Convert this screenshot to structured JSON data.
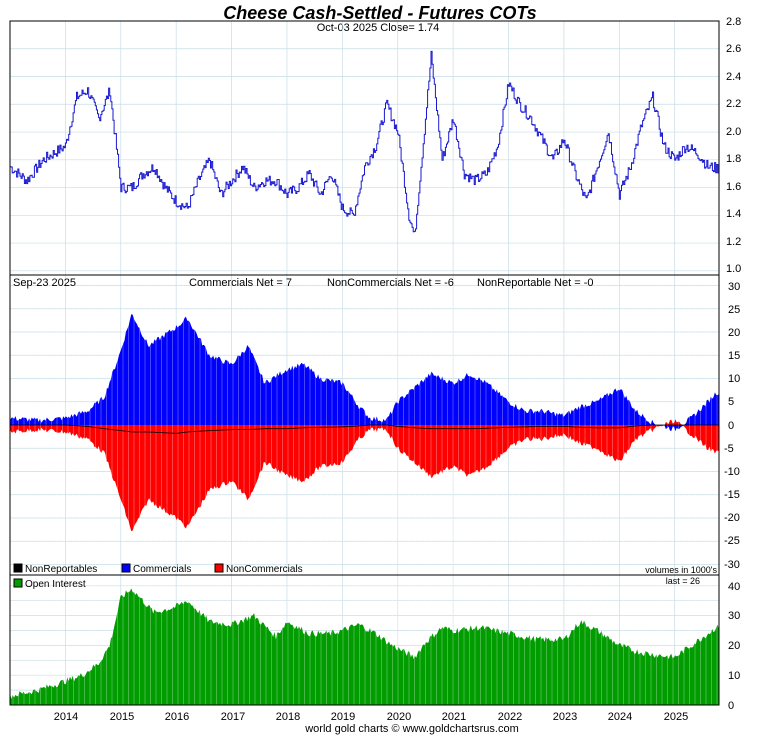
{
  "title": "Cheese Cash-Settled - Futures COTs",
  "subtitle": "Oct-03  2025   Close= 1.74",
  "footer": "world gold charts © www.goldchartsrus.com",
  "colors": {
    "title": "#1010d8",
    "price": "#1a1ad2",
    "commercials": "#0000ff",
    "noncommercials": "#ff0000",
    "nonreportables": "#000000",
    "open_interest": "#009c00",
    "grid": "#c7dde6"
  },
  "x_axis": {
    "labels": [
      "2014",
      "2015",
      "2016",
      "2017",
      "2018",
      "2019",
      "2020",
      "2021",
      "2022",
      "2023",
      "2024",
      "2025"
    ]
  },
  "price_panel": {
    "y_ticks": [
      "2.8",
      "2.6",
      "2.4",
      "2.2",
      "2.0",
      "1.8",
      "1.6",
      "1.4",
      "1.2",
      "1.0"
    ]
  },
  "cot_panel": {
    "date_label": "Sep-23  2025",
    "commercials_label": "Commercials Net = 7",
    "noncommercials_label": "NonCommercials Net = -6",
    "nonreportable_label": "NonReportable Net = -0",
    "y_ticks": [
      "30",
      "25",
      "20",
      "15",
      "10",
      "5",
      "0",
      "-5",
      "-10",
      "-15",
      "-20",
      "-25",
      "-30"
    ],
    "legend": [
      "NonReportables",
      "Commercials",
      "NonCommercials"
    ],
    "units_note": "volumes in 1000's"
  },
  "oi_panel": {
    "legend": "Open Interest",
    "last_label": "last = 26",
    "y_ticks": [
      "40",
      "30",
      "20",
      "10",
      "0"
    ]
  },
  "chart_data": [
    {
      "type": "line",
      "title": "Cheese Cash-Settled - Futures COTs",
      "series": [
        {
          "name": "Close",
          "x": [
            2013.0,
            2013.3,
            2013.6,
            2013.8,
            2014.0,
            2014.2,
            2014.4,
            2014.6,
            2014.8,
            2015.0,
            2015.2,
            2015.4,
            2015.6,
            2015.8,
            2016.0,
            2016.2,
            2016.4,
            2016.6,
            2016.8,
            2017.0,
            2017.2,
            2017.4,
            2017.6,
            2017.8,
            2018.0,
            2018.2,
            2018.4,
            2018.6,
            2018.8,
            2019.0,
            2019.2,
            2019.4,
            2019.6,
            2019.8,
            2020.0,
            2020.2,
            2020.3,
            2020.5,
            2020.6,
            2020.8,
            2021.0,
            2021.2,
            2021.4,
            2021.6,
            2021.8,
            2022.0,
            2022.2,
            2022.4,
            2022.6,
            2022.8,
            2023.0,
            2023.2,
            2023.4,
            2023.6,
            2023.8,
            2024.0,
            2024.2,
            2024.4,
            2024.6,
            2024.8,
            2025.0,
            2025.2,
            2025.4,
            2025.6,
            2025.75
          ],
          "values": [
            1.75,
            1.65,
            1.8,
            1.85,
            1.9,
            2.25,
            2.3,
            2.1,
            2.3,
            1.6,
            1.6,
            1.7,
            1.75,
            1.6,
            1.5,
            1.45,
            1.65,
            1.8,
            1.55,
            1.65,
            1.75,
            1.6,
            1.65,
            1.65,
            1.55,
            1.6,
            1.7,
            1.55,
            1.7,
            1.45,
            1.4,
            1.75,
            1.9,
            2.2,
            2.0,
            1.4,
            1.25,
            2.1,
            2.55,
            1.8,
            2.1,
            1.7,
            1.65,
            1.7,
            1.9,
            2.35,
            2.2,
            2.1,
            1.95,
            1.8,
            1.95,
            1.7,
            1.5,
            1.75,
            2.0,
            1.55,
            1.75,
            2.05,
            2.25,
            1.9,
            1.8,
            1.9,
            1.85,
            1.75,
            1.74
          ]
        }
      ],
      "ylim": [
        1.0,
        2.8
      ]
    },
    {
      "type": "area",
      "title": "COT Net Positions",
      "x": [
        2013.0,
        2013.5,
        2014.0,
        2014.4,
        2014.7,
        2015.0,
        2015.2,
        2015.5,
        2016.0,
        2016.2,
        2016.6,
        2017.0,
        2017.3,
        2017.6,
        2018.0,
        2018.3,
        2018.6,
        2019.0,
        2019.3,
        2019.5,
        2019.8,
        2020.0,
        2020.3,
        2020.6,
        2021.0,
        2021.3,
        2021.6,
        2022.0,
        2022.3,
        2022.6,
        2023.0,
        2023.3,
        2023.6,
        2024.0,
        2024.3,
        2024.6,
        2025.0,
        2025.3,
        2025.6,
        2025.75
      ],
      "series": [
        {
          "name": "Commercials",
          "values": [
            1.5,
            1,
            1.5,
            3,
            6,
            16,
            24,
            17,
            21,
            23,
            15,
            13,
            17,
            9,
            12,
            13,
            10,
            9,
            4,
            1.5,
            1,
            5,
            8,
            11,
            9,
            11,
            9,
            5,
            3,
            3,
            2,
            4,
            5,
            8,
            3,
            0.5,
            -1,
            1.5,
            5,
            7
          ]
        },
        {
          "name": "NonCommercials",
          "values": [
            -1.5,
            -1,
            -1.5,
            -3,
            -6,
            -16,
            -23,
            -16,
            -20,
            -22,
            -14,
            -12,
            -16,
            -8,
            -11,
            -12,
            -9,
            -8,
            -3,
            -1,
            -1,
            -5,
            -8,
            -11,
            -9,
            -11,
            -9,
            -5,
            -3,
            -3,
            -2,
            -4,
            -5,
            -8,
            -3,
            -1,
            1,
            -2,
            -5,
            -6
          ]
        },
        {
          "name": "NonReportables",
          "values": [
            0,
            0,
            0,
            -0.3,
            -0.8,
            -1.2,
            -1.5,
            -1.5,
            -1.8,
            -1.5,
            -1.2,
            -1,
            -1,
            -0.8,
            -0.8,
            -0.6,
            -0.5,
            -0.4,
            -0.2,
            0,
            0,
            -0.3,
            -0.6,
            -0.8,
            -0.8,
            -0.8,
            -0.7,
            -0.5,
            -0.4,
            -0.3,
            -0.3,
            -0.5,
            -0.6,
            -0.6,
            -0.2,
            0,
            0,
            0,
            0,
            0
          ]
        }
      ],
      "ylim": [
        -30,
        30
      ]
    },
    {
      "type": "bar",
      "title": "Open Interest",
      "x": [
        2013.0,
        2013.5,
        2014.0,
        2014.3,
        2014.6,
        2014.8,
        2015.0,
        2015.2,
        2015.6,
        2016.0,
        2016.2,
        2016.6,
        2017.0,
        2017.4,
        2017.8,
        2018.0,
        2018.4,
        2018.8,
        2019.0,
        2019.3,
        2019.6,
        2019.9,
        2020.0,
        2020.3,
        2020.5,
        2020.8,
        2021.0,
        2021.5,
        2022.0,
        2022.5,
        2023.0,
        2023.3,
        2023.6,
        2024.0,
        2024.3,
        2024.6,
        2025.0,
        2025.3,
        2025.6,
        2025.75
      ],
      "values": [
        3,
        5,
        8,
        10,
        14,
        20,
        36,
        39,
        31,
        33,
        35,
        28,
        27,
        30,
        23,
        28,
        24,
        24,
        25,
        27,
        24,
        20,
        19,
        16,
        21,
        26,
        25,
        26,
        24,
        22,
        22,
        28,
        25,
        20,
        18,
        17,
        16,
        20,
        24,
        26
      ],
      "ylim": [
        0,
        43
      ]
    }
  ]
}
